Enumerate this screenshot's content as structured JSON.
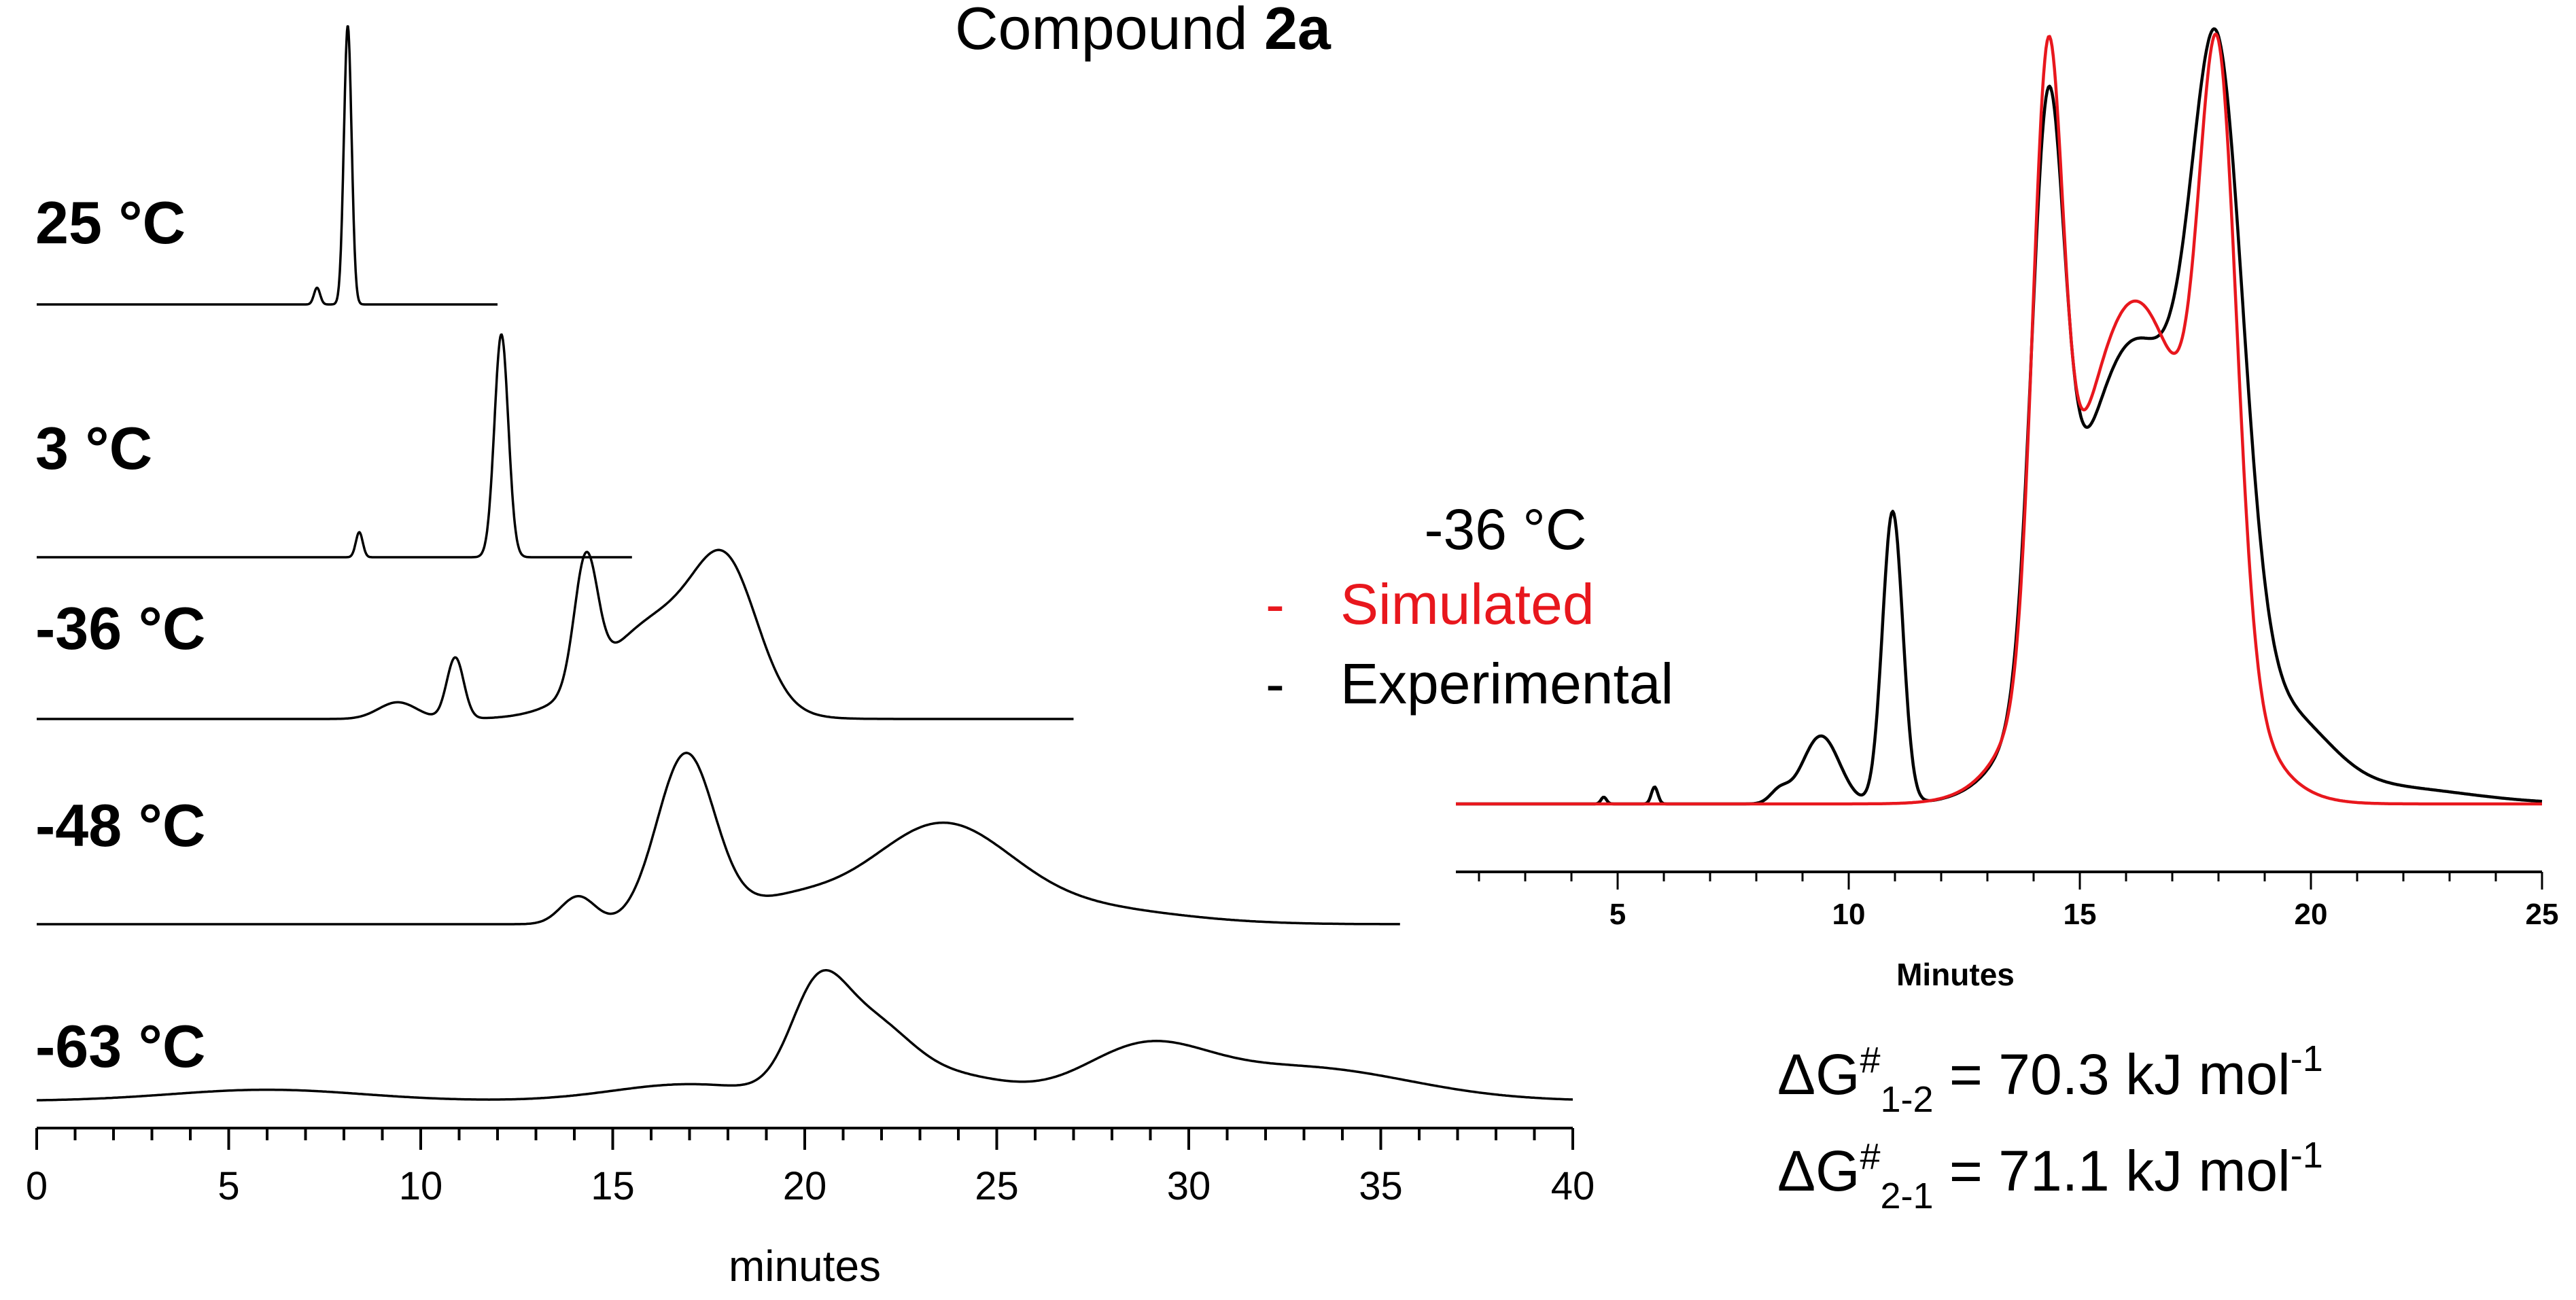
{
  "title_prefix": "Compound ",
  "title_bold": "2a",
  "colors": {
    "experimental": "#000000",
    "simulated": "#e8171d"
  },
  "chart_data": [
    {
      "type": "line",
      "title": "Compound 2a",
      "xlabel": "minutes",
      "ylabel": "",
      "xlim": [
        0,
        40
      ],
      "x_ticks": [
        0,
        5,
        10,
        15,
        20,
        25,
        30,
        35,
        40
      ],
      "grid": false,
      "series": [
        {
          "name": "25 °C",
          "end_minute": 12.0,
          "peaks": [
            {
              "center": 7.3,
              "height": 0.06,
              "width": 0.08
            },
            {
              "center": 8.1,
              "height": 1.0,
              "width": 0.1
            }
          ]
        },
        {
          "name": "3 °C",
          "end_minute": 15.5,
          "peaks": [
            {
              "center": 8.4,
              "height": 0.09,
              "width": 0.09
            },
            {
              "center": 12.1,
              "height": 0.8,
              "width": 0.18
            }
          ]
        },
        {
          "name": "-36 °C",
          "end_minute": 27.0,
          "peaks": [
            {
              "center": 9.4,
              "height": 0.06,
              "width": 0.5
            },
            {
              "center": 10.9,
              "height": 0.22,
              "width": 0.22
            },
            {
              "center": 14.3,
              "height": 0.45,
              "width": 0.3
            },
            {
              "center": 16.3,
              "height": 0.36,
              "width": 1.5
            },
            {
              "center": 18.0,
              "height": 0.4,
              "width": 0.8
            }
          ]
        },
        {
          "name": "-48 °C",
          "end_minute": 35.5,
          "peaks": [
            {
              "center": 14.1,
              "height": 0.1,
              "width": 0.45
            },
            {
              "center": 16.9,
              "height": 0.6,
              "width": 0.75
            },
            {
              "center": 19.5,
              "height": 0.08,
              "width": 1.4
            },
            {
              "center": 23.5,
              "height": 0.34,
              "width": 1.8
            },
            {
              "center": 27.0,
              "height": 0.06,
              "width": 2.5
            }
          ]
        },
        {
          "name": "-63 °C",
          "end_minute": 40.0,
          "peaks": [
            {
              "center": 6.0,
              "height": 0.04,
              "width": 2.5
            },
            {
              "center": 17.0,
              "height": 0.06,
              "width": 2.0
            },
            {
              "center": 20.3,
              "height": 0.3,
              "width": 0.7
            },
            {
              "center": 21.6,
              "height": 0.27,
              "width": 1.1
            },
            {
              "center": 24.0,
              "height": 0.08,
              "width": 1.4
            },
            {
              "center": 28.8,
              "height": 0.17,
              "width": 1.6
            },
            {
              "center": 32.9,
              "height": 0.12,
              "width": 2.8
            }
          ]
        }
      ]
    },
    {
      "type": "line",
      "title": "-36 °C",
      "xlabel": "Minutes",
      "ylabel": "",
      "xlim": [
        1.5,
        25
      ],
      "x_ticks": [
        5,
        10,
        15,
        20,
        25
      ],
      "grid": false,
      "series": [
        {
          "name": "Experimental",
          "peaks": [
            {
              "center": 4.7,
              "height": 0.01,
              "width": 0.06
            },
            {
              "center": 5.8,
              "height": 0.025,
              "width": 0.07
            },
            {
              "center": 8.5,
              "height": 0.018,
              "width": 0.2
            },
            {
              "center": 9.4,
              "height": 0.1,
              "width": 0.4
            },
            {
              "center": 10.95,
              "height": 0.43,
              "width": 0.22
            },
            {
              "center": 14.3,
              "height": 0.78,
              "width": 0.35
            },
            {
              "center": 16.2,
              "height": 0.68,
              "width": 1.4
            },
            {
              "center": 18.0,
              "height": 0.81,
              "width": 0.55
            },
            {
              "center": 19.6,
              "height": 0.09,
              "width": 0.9
            },
            {
              "center": 21.5,
              "height": 0.025,
              "width": 1.8
            }
          ]
        },
        {
          "name": "Simulated",
          "peaks": [
            {
              "center": 14.3,
              "height": 0.83,
              "width": 0.32
            },
            {
              "center": 16.2,
              "height": 0.74,
              "width": 1.4
            },
            {
              "center": 18.0,
              "height": 0.8,
              "width": 0.4
            }
          ]
        }
      ],
      "legend": [
        {
          "dash": "-",
          "name": "Simulated",
          "color": "#e8171d"
        },
        {
          "dash": "-",
          "name": "Experimental",
          "color": "#000000"
        }
      ],
      "annotations": [
        {
          "delta": "ΔG",
          "hash": "#",
          "sub": "1-2",
          "rhs": " = 70.3 kJ mol",
          "exp": "-1"
        },
        {
          "delta": "ΔG",
          "hash": "#",
          "sub": "2-1",
          "rhs": " = 71.1 kJ mol",
          "exp": "-1"
        }
      ]
    }
  ]
}
